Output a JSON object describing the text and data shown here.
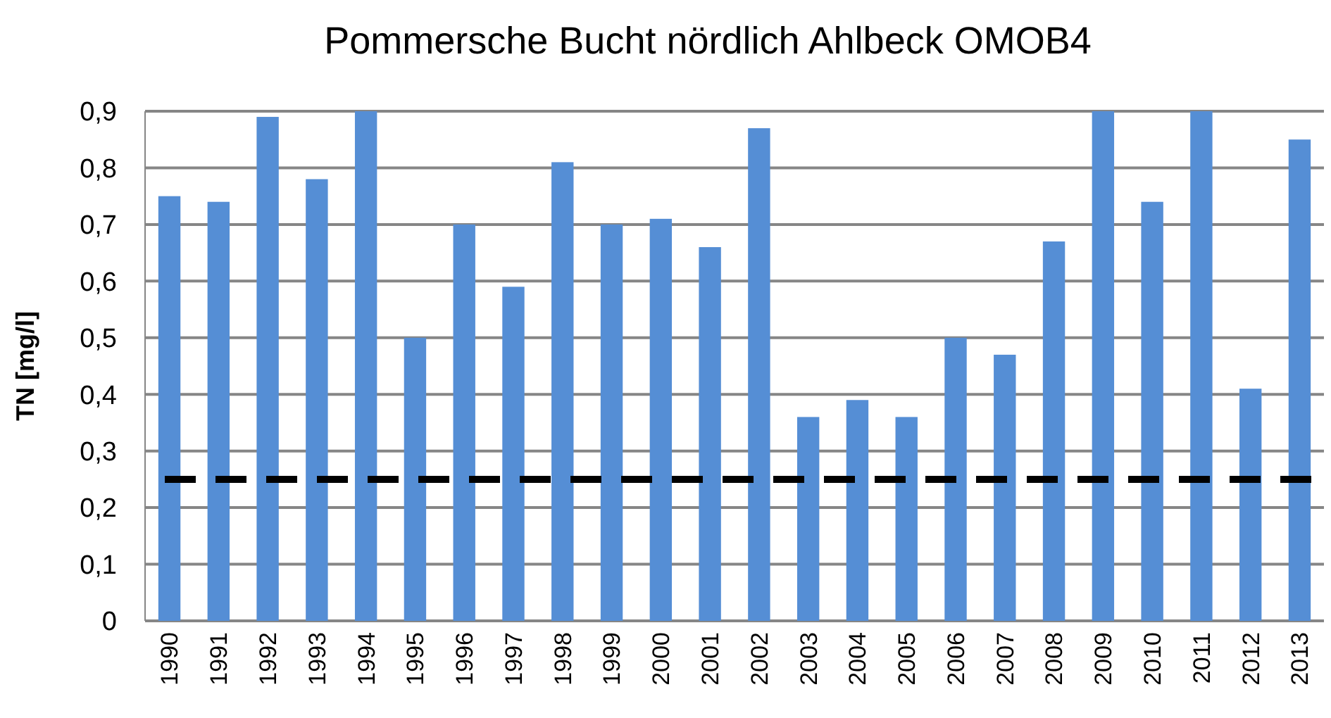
{
  "chart_data": {
    "type": "bar",
    "title": "Pommersche Bucht nördlich Ahlbeck  OMOB4",
    "ylabel": "TN [mg/l]",
    "categories": [
      "1990",
      "1991",
      "1992",
      "1993",
      "1994",
      "1995",
      "1996",
      "1997",
      "1998",
      "1999",
      "2000",
      "2001",
      "2002",
      "2003",
      "2004",
      "2005",
      "2006",
      "2007",
      "2008",
      "2009",
      "2010",
      "2011",
      "2012",
      "2013"
    ],
    "values": [
      0.75,
      0.74,
      0.89,
      0.78,
      0.9,
      0.5,
      0.7,
      0.59,
      0.81,
      0.7,
      0.71,
      0.66,
      0.87,
      0.36,
      0.39,
      0.36,
      0.5,
      0.47,
      0.67,
      0.9,
      0.74,
      0.9,
      0.41,
      0.85
    ],
    "color": "#558ed5",
    "ylim": [
      0,
      0.9
    ],
    "yticks": [
      {
        "value": 0,
        "label": "0"
      },
      {
        "value": 0.1,
        "label": "0,1"
      },
      {
        "value": 0.2,
        "label": "0,2"
      },
      {
        "value": 0.3,
        "label": "0,3"
      },
      {
        "value": 0.4,
        "label": "0,4"
      },
      {
        "value": 0.5,
        "label": "0,5"
      },
      {
        "value": 0.6,
        "label": "0,6"
      },
      {
        "value": 0.7,
        "label": "0,7"
      },
      {
        "value": 0.8,
        "label": "0,8"
      },
      {
        "value": 0.9,
        "label": "0,9"
      }
    ],
    "grid": "y",
    "ref_lines": [
      {
        "axis": "y",
        "value": 0.25,
        "label": null,
        "color": "#000000",
        "line_style": "dashed"
      }
    ]
  }
}
